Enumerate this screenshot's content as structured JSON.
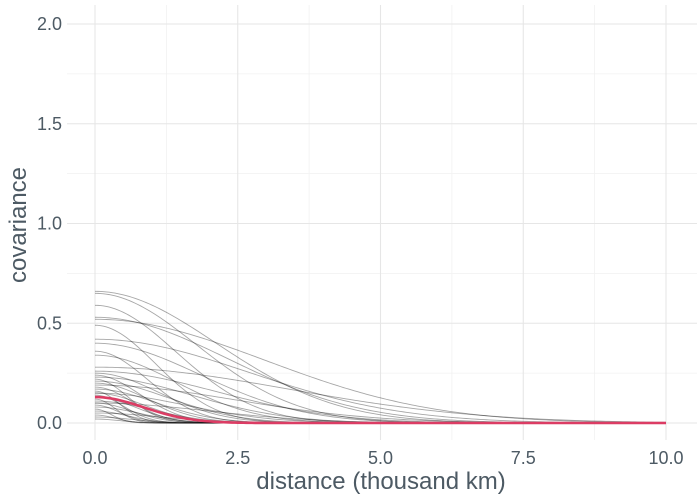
{
  "chart_data": {
    "type": "line",
    "xlabel": "distance (thousand km)",
    "ylabel": "covariance",
    "xlim": [
      0,
      10
    ],
    "ylim": [
      0,
      2
    ],
    "x_ticks": [
      0,
      2.5,
      5,
      7.5,
      10
    ],
    "x_tick_labels": [
      "0.0",
      "2.5",
      "5.0",
      "7.5",
      "10.0"
    ],
    "y_ticks": [
      0,
      0.5,
      1,
      1.5,
      2
    ],
    "y_tick_labels": [
      "0.0",
      "0.5",
      "1.0",
      "1.5",
      "2.0"
    ],
    "grid": true,
    "curve_model": "y = a * exp(-(x / l)^2)",
    "sample_curves": [
      {
        "a": 0.66,
        "l": 3.0
      },
      {
        "a": 0.65,
        "l": 2.5
      },
      {
        "a": 0.59,
        "l": 2.0
      },
      {
        "a": 0.53,
        "l": 3.3
      },
      {
        "a": 0.52,
        "l": 4.2
      },
      {
        "a": 0.49,
        "l": 1.5
      },
      {
        "a": 0.42,
        "l": 3.8
      },
      {
        "a": 0.4,
        "l": 2.6
      },
      {
        "a": 0.36,
        "l": 1.3
      },
      {
        "a": 0.34,
        "l": 2.0
      },
      {
        "a": 0.28,
        "l": 4.8
      },
      {
        "a": 0.26,
        "l": 3.0
      },
      {
        "a": 0.25,
        "l": 1.6
      },
      {
        "a": 0.24,
        "l": 1.1
      },
      {
        "a": 0.23,
        "l": 2.4
      },
      {
        "a": 0.22,
        "l": 0.8
      },
      {
        "a": 0.21,
        "l": 1.8
      },
      {
        "a": 0.2,
        "l": 1.3
      },
      {
        "a": 0.19,
        "l": 3.5
      },
      {
        "a": 0.18,
        "l": 0.9
      },
      {
        "a": 0.17,
        "l": 1.5
      },
      {
        "a": 0.16,
        "l": 0.6
      },
      {
        "a": 0.15,
        "l": 1.2
      },
      {
        "a": 0.15,
        "l": 2.2
      },
      {
        "a": 0.14,
        "l": 0.7
      },
      {
        "a": 0.13,
        "l": 1.0
      },
      {
        "a": 0.12,
        "l": 0.5
      },
      {
        "a": 0.11,
        "l": 1.4
      },
      {
        "a": 0.1,
        "l": 0.9
      },
      {
        "a": 0.1,
        "l": 2.8
      },
      {
        "a": 0.09,
        "l": 0.6
      },
      {
        "a": 0.08,
        "l": 1.1
      },
      {
        "a": 0.07,
        "l": 0.4
      },
      {
        "a": 0.06,
        "l": 0.8
      },
      {
        "a": 0.05,
        "l": 1.6
      },
      {
        "a": 0.04,
        "l": 0.5
      },
      {
        "a": 0.03,
        "l": 0.9
      },
      {
        "a": 0.02,
        "l": 0.6
      }
    ],
    "mean_curve": {
      "a": 0.13,
      "l": 1.2,
      "color": "#dc3c64"
    }
  }
}
